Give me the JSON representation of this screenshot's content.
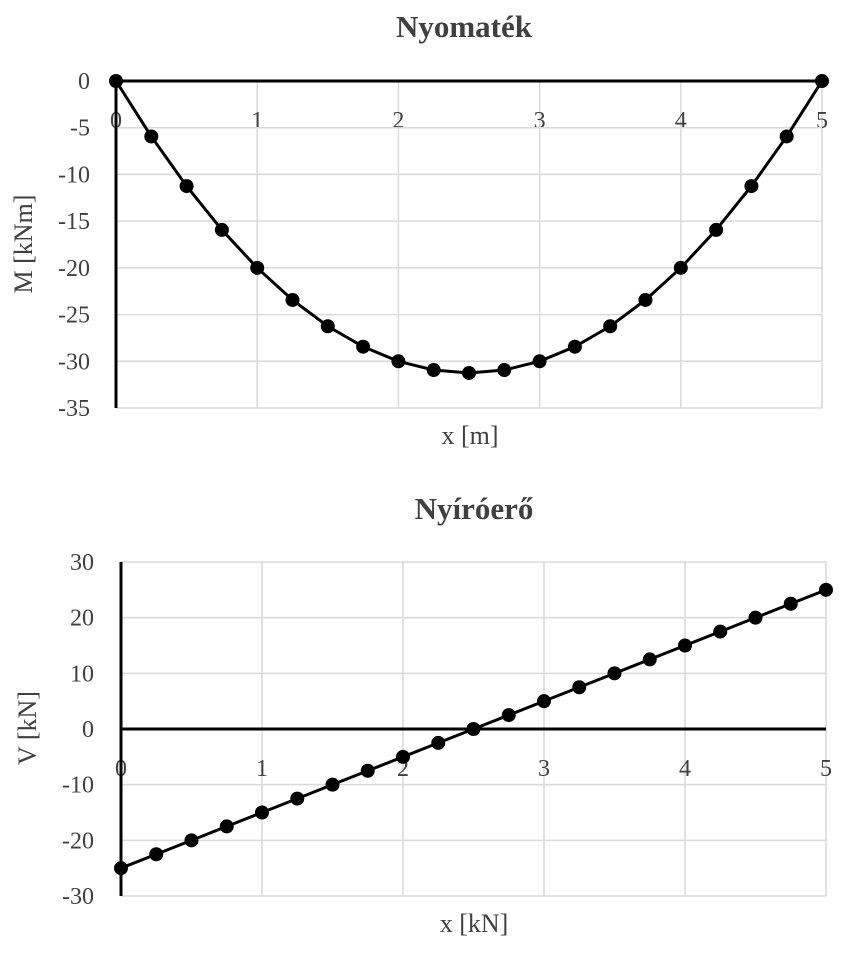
{
  "colors": {
    "grid": "#d9d9d9",
    "axis": "#000000",
    "series": "#000000",
    "text": "#404040",
    "background": "#ffffff"
  },
  "chart_data": [
    {
      "type": "line",
      "title": "Nyomaték",
      "xlabel": "x [m]",
      "ylabel": "M [kNm]",
      "xlim": [
        0,
        5
      ],
      "ylim": [
        -35,
        0
      ],
      "xticks": [
        "0",
        "1",
        "2",
        "3",
        "4",
        "5"
      ],
      "yticks": [
        "0",
        "-5",
        "-10",
        "-15",
        "-20",
        "-25",
        "-30",
        "-35"
      ],
      "grid": true,
      "markers": true,
      "series": [
        {
          "x": [
            0,
            0.25,
            0.5,
            0.75,
            1,
            1.25,
            1.5,
            1.75,
            2,
            2.25,
            2.5,
            2.75,
            3,
            3.25,
            3.5,
            3.75,
            4,
            4.25,
            4.5,
            4.75,
            5
          ],
          "y": [
            0,
            -5.9375,
            -11.25,
            -15.9375,
            -20,
            -23.4375,
            -26.25,
            -28.4375,
            -30,
            -30.9375,
            -31.25,
            -30.9375,
            -30,
            -28.4375,
            -26.25,
            -23.4375,
            -20,
            -15.9375,
            -11.25,
            -5.9375,
            0
          ]
        }
      ]
    },
    {
      "type": "line",
      "title": "Nyíróerő",
      "xlabel": "x [kN]",
      "ylabel": "V [kN]",
      "xlim": [
        0,
        5
      ],
      "ylim": [
        -30,
        30
      ],
      "xticks": [
        "0",
        "1",
        "2",
        "3",
        "4",
        "5"
      ],
      "yticks": [
        "30",
        "20",
        "10",
        "0",
        "-10",
        "-20",
        "-30"
      ],
      "grid": true,
      "markers": true,
      "series": [
        {
          "x": [
            0,
            0.25,
            0.5,
            0.75,
            1,
            1.25,
            1.5,
            1.75,
            2,
            2.25,
            2.5,
            2.75,
            3,
            3.25,
            3.5,
            3.75,
            4,
            4.25,
            4.5,
            4.75,
            5
          ],
          "y": [
            -25,
            -22.5,
            -20,
            -17.5,
            -15,
            -12.5,
            -10,
            -7.5,
            -5,
            -2.5,
            0,
            2.5,
            5,
            7.5,
            10,
            12.5,
            15,
            17.5,
            20,
            22.5,
            25
          ]
        }
      ]
    }
  ]
}
